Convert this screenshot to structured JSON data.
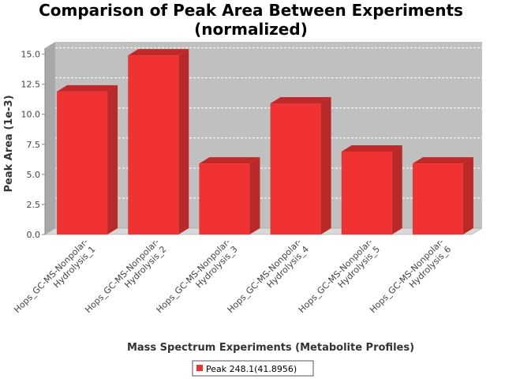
{
  "chart_data": {
    "type": "bar",
    "title": "Comparison of Peak Area Between Experiments",
    "subtitle": "(normalized)",
    "xlabel": "Mass Spectrum Experiments (Metabolite Profiles)",
    "ylabel": "Peak Area (1e-3)",
    "ylim": [
      0,
      15.5
    ],
    "yticks": [
      "0.0",
      "2.5",
      "5.0",
      "7.5",
      "10.0",
      "12.5",
      "15.0"
    ],
    "categories": [
      [
        "Hops_GC-MS-Nonpolar-",
        "Hydrolysis_1"
      ],
      [
        "Hops_GC-MS-Nonpolar-",
        "Hydrolysis_2"
      ],
      [
        "Hops_GC-MS-Nonpolar-",
        "Hydrolysis_3"
      ],
      [
        "Hops_GC-MS-Nonpolar-",
        "Hydrolysis_4"
      ],
      [
        "Hops_GC-MS-Nonpolar-",
        "Hydrolysis_5"
      ],
      [
        "Hops_GC-MS-Nonpolar-",
        "Hydrolysis_6"
      ]
    ],
    "series": [
      {
        "name": "Peak 248.1(41.8956)",
        "values": [
          11.9,
          14.9,
          5.9,
          10.9,
          6.9,
          5.9
        ]
      }
    ],
    "grid": true,
    "legend": "bottom-center",
    "colors": {
      "bar_front": "#f03232",
      "bar_top": "#c22828",
      "bar_side": "#b82a2a",
      "plot_bg": "#c0c0c0",
      "plot_wall": "#a8a8a8",
      "floor": "#d8d8d8"
    }
  }
}
